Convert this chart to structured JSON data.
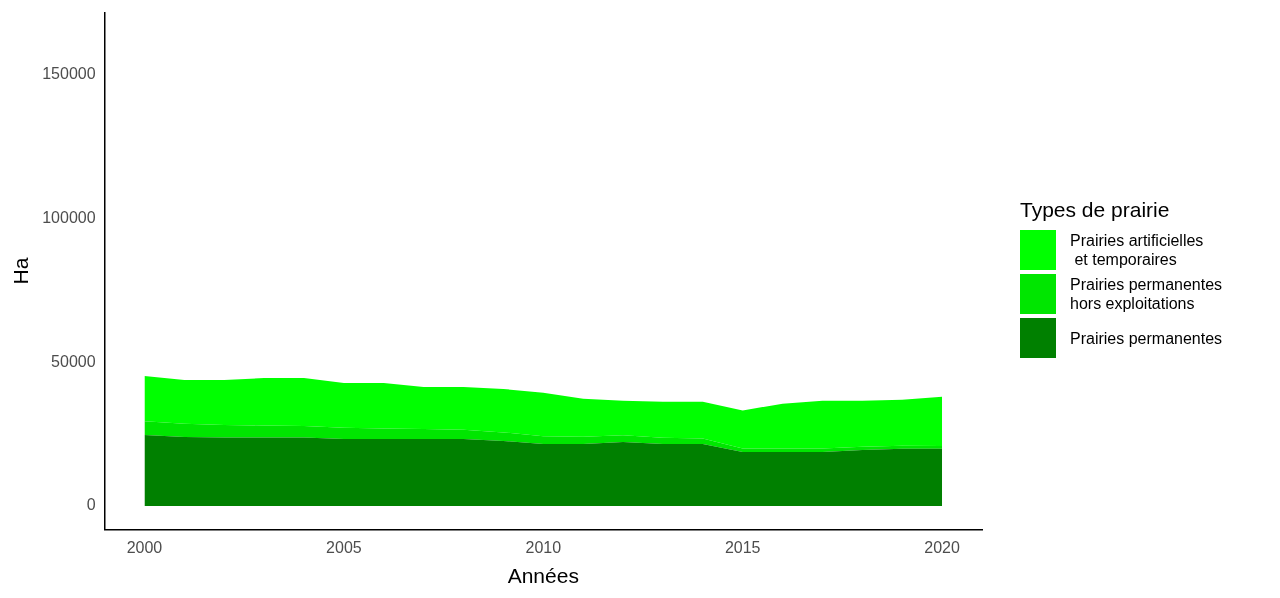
{
  "chart_data": {
    "type": "area",
    "stacked": true,
    "xlabel": "Années",
    "ylabel": "Ha",
    "legend_title": "Types de prairie",
    "legend": "right",
    "grid": false,
    "x": [
      2000,
      2001,
      2002,
      2003,
      2004,
      2005,
      2006,
      2007,
      2008,
      2009,
      2010,
      2011,
      2012,
      2013,
      2014,
      2015,
      2016,
      2017,
      2018,
      2019,
      2020
    ],
    "xlim": [
      1999,
      2021
    ],
    "xticks": [
      2000,
      2005,
      2010,
      2015,
      2020
    ],
    "ylim": [
      -8200,
      171600
    ],
    "yticks": [
      0,
      50000,
      100000,
      150000
    ],
    "series": [
      {
        "name": "Prairies permanentes",
        "color": "#008000",
        "values": [
          24700,
          24000,
          23800,
          23800,
          23800,
          23300,
          23300,
          23300,
          23300,
          22600,
          21600,
          21600,
          22300,
          21600,
          21600,
          18800,
          18800,
          18800,
          19500,
          19900,
          19900
        ]
      },
      {
        "name": "Prairies permanentes\nhors exploitations",
        "color": "#00e600",
        "values": [
          4800,
          4600,
          4400,
          4200,
          4000,
          3900,
          3700,
          3500,
          3200,
          3000,
          2700,
          2500,
          2300,
          2100,
          1900,
          1200,
          1200,
          1200,
          1100,
          1100,
          1000
        ]
      },
      {
        "name": "Prairies artificielles\n et temporaires",
        "color": "#00ff00",
        "values": [
          15700,
          15200,
          15600,
          16500,
          16700,
          15600,
          15800,
          14600,
          14900,
          15100,
          15100,
          13200,
          12000,
          12600,
          12800,
          13200,
          15600,
          16600,
          16000,
          16000,
          17100
        ]
      }
    ]
  }
}
